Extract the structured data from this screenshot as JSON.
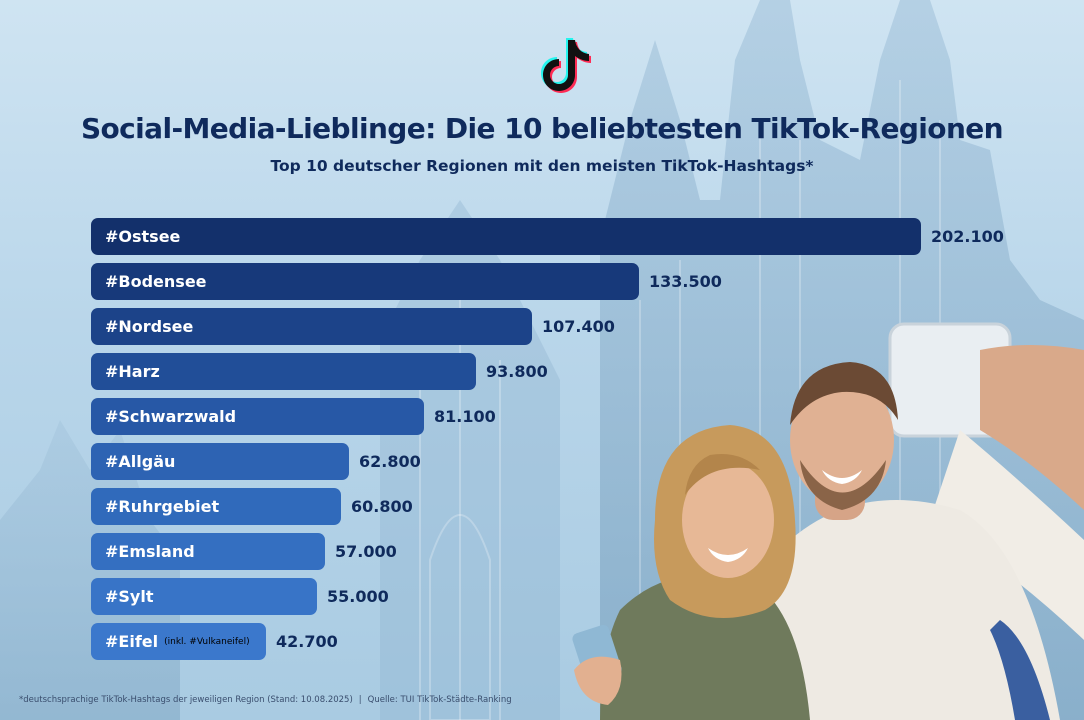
{
  "logo": {
    "icon": "tiktok-logo-icon"
  },
  "chart_data": {
    "type": "bar",
    "orientation": "horizontal",
    "title": "Social-Media-Lieblinge: Die 10 beliebtesten TikTok-Regionen",
    "subtitle": "Top 10 deutscher Regionen mit den meisten TikTok-Hashtags*",
    "categories": [
      "#Ostsee",
      "#Bodensee",
      "#Nordsee",
      "#Harz",
      "#Schwarzwald",
      "#Allgäu",
      "#Ruhrgebiet",
      "#Emsland",
      "#Sylt",
      "#Eifel"
    ],
    "category_notes": [
      "",
      "",
      "",
      "",
      "",
      "",
      "",
      "",
      "",
      "(inkl. #Vulkaneifel)"
    ],
    "values": [
      202100,
      133500,
      107400,
      93800,
      81100,
      62800,
      60800,
      57000,
      55000,
      42700
    ],
    "value_labels": [
      "202.100",
      "133.500",
      "107.400",
      "93.800",
      "81.100",
      "62.800",
      "60.800",
      "57.000",
      "55.000",
      "42.700"
    ],
    "bar_colors": [
      "#13306b",
      "#17397a",
      "#1c4389",
      "#214e98",
      "#2758a6",
      "#2d63b3",
      "#306abb",
      "#346fc1",
      "#3874c7",
      "#3b78cc"
    ],
    "xlabel": "",
    "ylabel": "",
    "grid": false
  },
  "footnote": {
    "note": "*deutschsprachige TikTok-Hashtags der jeweiligen Region (Stand: 10.08.2025)",
    "separator": "|",
    "source": "Quelle: TUI TikTok-Städte-Ranking"
  }
}
